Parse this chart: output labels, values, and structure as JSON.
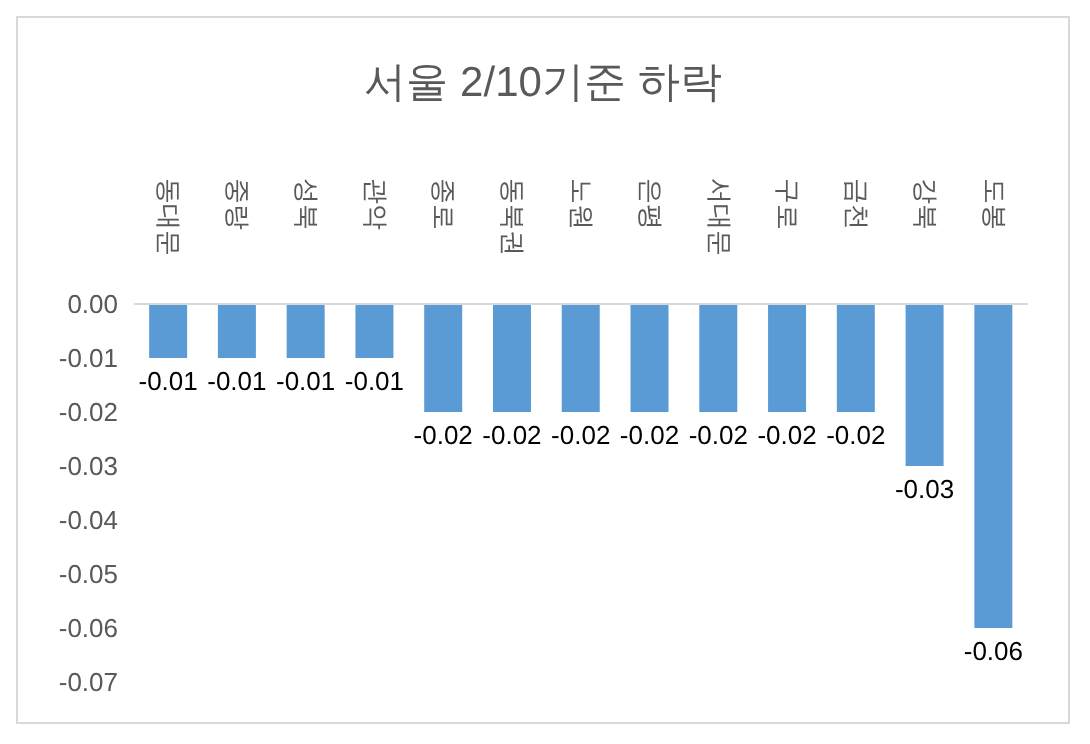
{
  "chart_data": {
    "type": "bar",
    "title": "서울 2/10기준 하락",
    "categories": [
      "동대문",
      "중랑",
      "성북",
      "관악",
      "종로",
      "동북권",
      "노원",
      "은평",
      "서대문",
      "구로",
      "금천",
      "강북",
      "도봉"
    ],
    "values": [
      -0.01,
      -0.01,
      -0.01,
      -0.01,
      -0.02,
      -0.02,
      -0.02,
      -0.02,
      -0.02,
      -0.02,
      -0.02,
      -0.03,
      -0.06
    ],
    "color": "#5b9bd5",
    "ylim": [
      -0.07,
      0
    ],
    "yticks": [
      {
        "value": -0.07,
        "label": "-0.07"
      },
      {
        "value": -0.06,
        "label": "-0.06"
      },
      {
        "value": -0.05,
        "label": "-0.05"
      },
      {
        "value": -0.04,
        "label": "-0.04"
      },
      {
        "value": -0.03,
        "label": "-0.03"
      },
      {
        "value": -0.02,
        "label": "-0.02"
      },
      {
        "value": -0.01,
        "label": "-0.01"
      },
      {
        "value": 0,
        "label": "0.00"
      }
    ],
    "data_labels": true,
    "grid": false,
    "legend": false
  }
}
